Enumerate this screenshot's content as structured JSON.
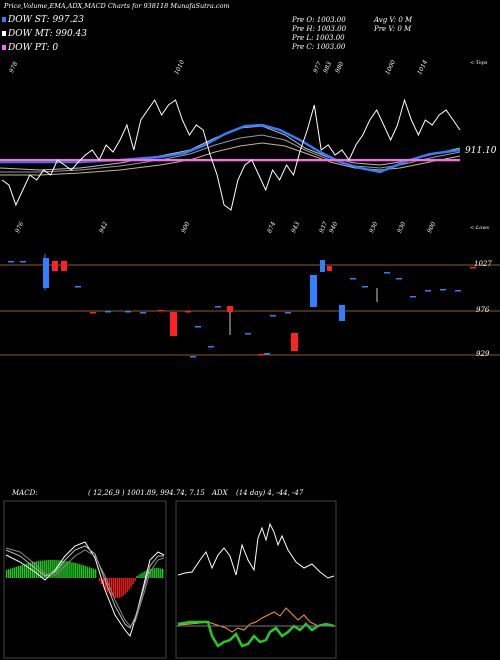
{
  "header": {
    "title": "Price,Volume,EMA,ADX,MACD Charts for 938118 MunafaSutra.com"
  },
  "legend": [
    {
      "label": "DOW ST: 997.23",
      "color": "#2f7fff"
    },
    {
      "label": "DOW MT: 990.43",
      "color": "#ffffff"
    },
    {
      "label": "DOW PT: 0",
      "color": "#ff66ff"
    }
  ],
  "ohlc_prev": {
    "o": "Pre   O: 1003.00",
    "h": "Pre   H: 1003.00",
    "l": "Pre   L: 1003.00",
    "c": "Pre   C: 1003.00"
  },
  "volume_info": {
    "avg": "Avg V: 0   M",
    "prev": "Pre   V: 0   M"
  },
  "price_last": "911.10",
  "tops_label": "<-Tops",
  "lows_label": "<-Lows",
  "top_labels": [
    "978",
    "1010",
    "977",
    "983",
    "980",
    "1000",
    "1014"
  ],
  "low_labels": [
    "976",
    "942",
    "900",
    "874",
    "943",
    "937",
    "940",
    "930",
    "930",
    "900"
  ],
  "volume_axis": [
    "1027",
    "976",
    "929"
  ],
  "macd_label": "MACD:",
  "macd_values": "( 12,26,9 ) 1001.89, 994.74, 7.15",
  "adx_label": "ADX",
  "adx_values": "(14  day) 4, -44, -47",
  "colors": {
    "ema_blue": "#2f7fff",
    "pt_magenta": "#ff66ff",
    "up": "#2f7fff",
    "down": "#ff2222",
    "macd_green": "#22cc22",
    "macd_red": "#ee2222",
    "price_line": "#8b5a2b"
  },
  "chart_data": {
    "type": "line",
    "series": [
      {
        "values": [
          930,
          925,
          905,
          920,
          935,
          930,
          940,
          935,
          950,
          945,
          940,
          948,
          955,
          960,
          950,
          965,
          958,
          970,
          985,
          960,
          990,
          1000,
          1010,
          995,
          1005,
          1010,
          990,
          975,
          985,
          980,
          955,
          935,
          905,
          900,
          930,
          945,
          950,
          935,
          920,
          940,
          930,
          945,
          935,
          960,
          980,
          1005,
          960,
          965,
          955,
          960,
          950,
          965,
          975,
          990,
          1000,
          985,
          970,
          985,
          1010,
          990,
          975,
          990,
          985,
          995,
          1000,
          990,
          980
        ]
      }
    ],
    "horizontal_level": 911.1
  }
}
